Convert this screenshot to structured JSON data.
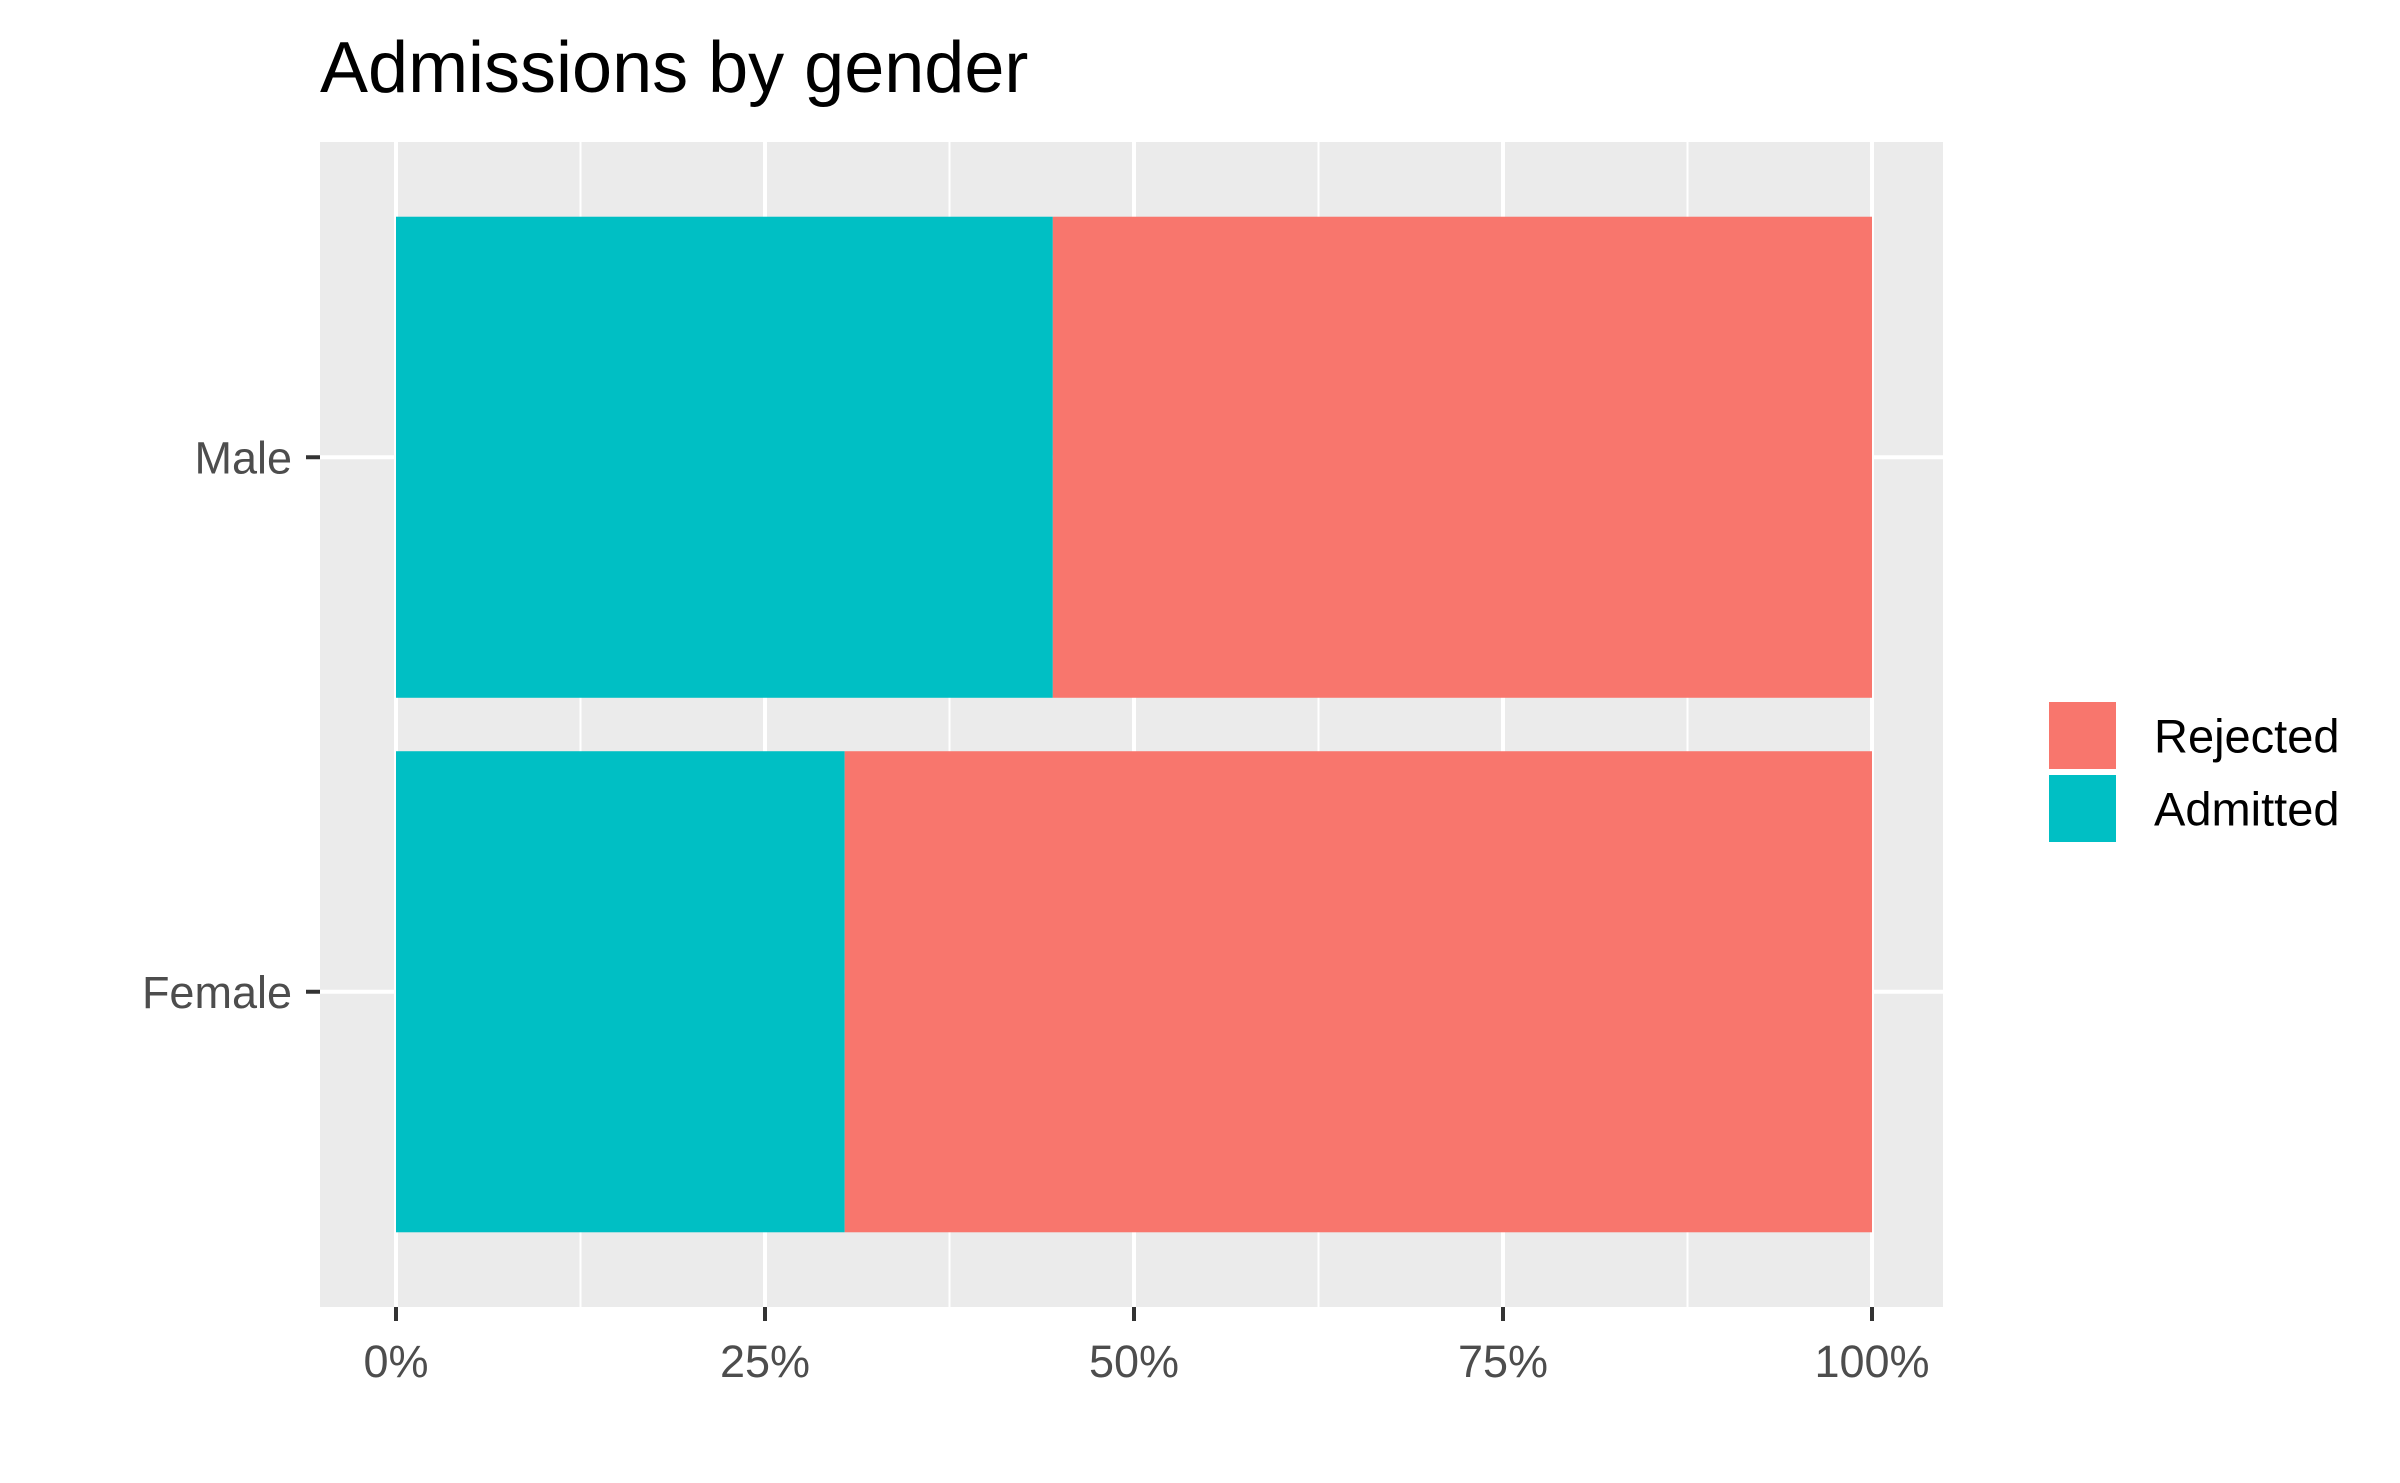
{
  "chart_data": {
    "type": "bar",
    "orientation": "horizontal",
    "stacked": true,
    "normalized": true,
    "title": "Admissions by gender",
    "xlabel": "",
    "ylabel": "",
    "categories": [
      "Female",
      "Male"
    ],
    "x_ticks": [
      "0%",
      "25%",
      "50%",
      "75%",
      "100%"
    ],
    "xlim": [
      0,
      1
    ],
    "grid": true,
    "legend_position": "right",
    "series": [
      {
        "name": "Admitted",
        "color": "#00BFC4",
        "values": [
          0.304,
          0.445
        ]
      },
      {
        "name": "Rejected",
        "color": "#F8766D",
        "values": [
          0.696,
          0.555
        ]
      }
    ],
    "legend": [
      {
        "name": "Rejected",
        "color": "#F8766D"
      },
      {
        "name": "Admitted",
        "color": "#00BFC4"
      }
    ]
  }
}
